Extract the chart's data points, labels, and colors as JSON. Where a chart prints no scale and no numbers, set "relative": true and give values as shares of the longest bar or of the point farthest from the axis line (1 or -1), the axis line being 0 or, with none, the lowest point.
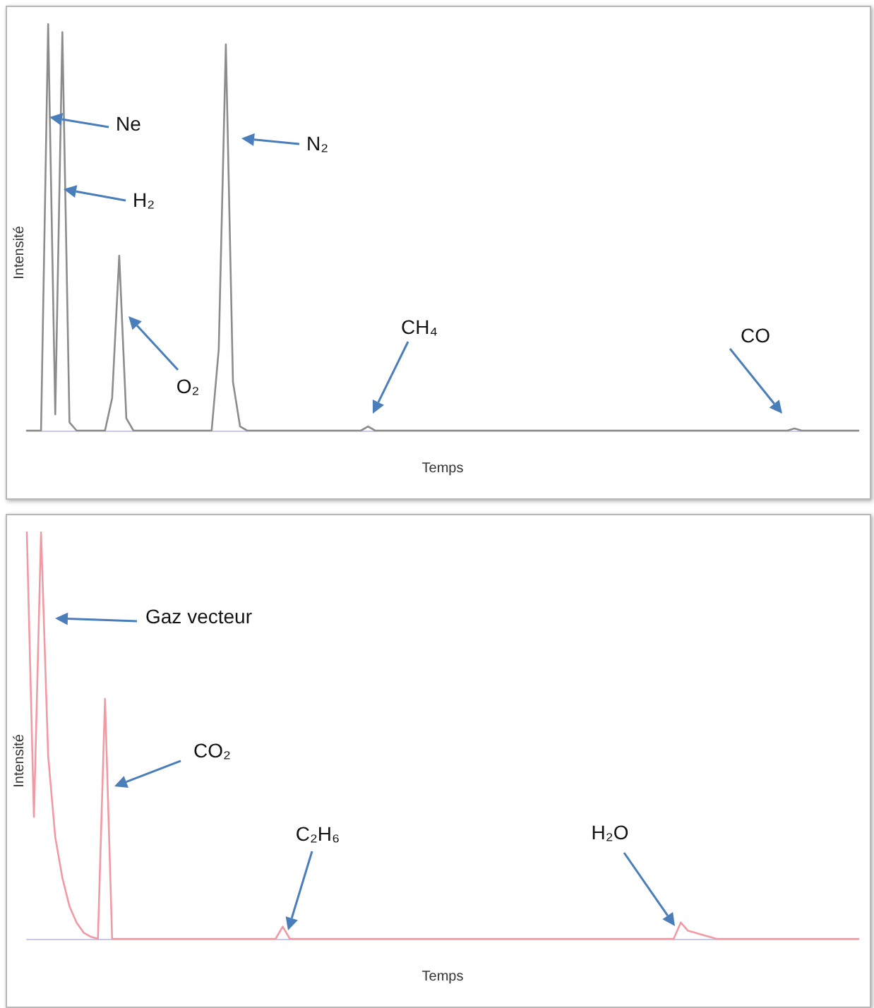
{
  "chart_data": [
    {
      "type": "line",
      "relative": true,
      "xlabel": "Temps",
      "ylabel": "Intensité",
      "line_style": "solid",
      "categories": [
        null,
        null,
        null,
        null,
        null,
        null,
        null,
        null,
        null,
        null,
        null,
        null,
        null,
        null,
        null,
        null,
        null,
        null,
        null,
        null,
        null,
        null,
        null,
        null,
        null,
        null,
        null,
        null,
        null,
        null,
        null,
        null,
        null,
        null,
        null,
        null,
        null,
        null,
        null,
        null,
        null,
        null,
        null,
        null,
        null,
        null,
        null,
        null,
        null,
        null,
        null,
        null,
        null,
        null,
        null,
        null,
        null,
        null,
        null,
        null,
        null,
        null,
        null,
        null,
        null,
        null,
        null,
        null,
        null,
        null,
        null,
        null,
        null,
        null,
        null,
        null,
        null,
        null,
        null,
        null,
        null,
        null,
        null,
        null,
        null,
        null,
        null,
        null,
        null,
        null,
        null,
        null,
        null,
        null,
        null,
        null,
        null,
        null,
        null,
        null,
        null,
        null,
        null,
        null,
        null,
        null,
        null,
        null,
        null,
        null,
        null,
        null,
        null,
        null,
        null,
        null,
        null,
        null
      ],
      "series": [
        {
          "color": "#8c8c8c",
          "values": [
            0,
            0,
            0,
            1,
            0.04,
            0.98,
            0.02,
            0,
            0,
            0,
            0,
            0,
            0.08,
            0.43,
            0.03,
            0,
            0,
            0,
            0,
            0,
            0,
            0,
            0,
            0,
            0,
            0,
            0,
            0.2,
            0.95,
            0.12,
            0.01,
            0,
            0,
            0,
            0,
            0,
            0,
            0,
            0,
            0,
            0,
            0,
            0,
            0,
            0,
            0,
            0,
            0,
            0.01,
            0,
            0,
            0,
            0,
            0,
            0,
            0,
            0,
            0,
            0,
            0,
            0,
            0,
            0,
            0,
            0,
            0,
            0,
            0,
            0,
            0,
            0,
            0,
            0,
            0,
            0,
            0,
            0,
            0,
            0,
            0,
            0,
            0,
            0,
            0,
            0,
            0,
            0,
            0,
            0,
            0,
            0,
            0,
            0,
            0,
            0,
            0,
            0,
            0,
            0,
            0,
            0,
            0,
            0,
            0,
            0,
            0,
            0,
            0,
            0.005,
            0,
            0,
            0,
            0,
            0,
            0,
            0,
            0,
            0
          ]
        }
      ],
      "annotations": [
        "Ne",
        "H₂",
        "N₂",
        "O₂",
        "CH₄",
        "CO"
      ]
    },
    {
      "type": "line",
      "relative": true,
      "xlabel": "Temps",
      "ylabel": "Intensité",
      "line_style": "solid",
      "categories": [
        null,
        null,
        null,
        null,
        null,
        null,
        null,
        null,
        null,
        null,
        null,
        null,
        null,
        null,
        null,
        null,
        null,
        null,
        null,
        null,
        null,
        null,
        null,
        null,
        null,
        null,
        null,
        null,
        null,
        null,
        null,
        null,
        null,
        null,
        null,
        null,
        null,
        null,
        null,
        null,
        null,
        null,
        null,
        null,
        null,
        null,
        null,
        null,
        null,
        null,
        null,
        null,
        null,
        null,
        null,
        null,
        null,
        null,
        null,
        null,
        null,
        null,
        null,
        null,
        null,
        null,
        null,
        null,
        null,
        null,
        null,
        null,
        null,
        null,
        null,
        null,
        null,
        null,
        null,
        null,
        null,
        null,
        null,
        null,
        null,
        null,
        null,
        null,
        null,
        null,
        null,
        null,
        null,
        null,
        null,
        null,
        null,
        null,
        null,
        null,
        null,
        null,
        null,
        null,
        null,
        null,
        null,
        null,
        null,
        null,
        null,
        null,
        null,
        null,
        null,
        null,
        null,
        null
      ],
      "series": [
        {
          "color": "#f29aa3",
          "values": [
            1,
            0.3,
            1,
            0.45,
            0.25,
            0.15,
            0.08,
            0.04,
            0.015,
            0.005,
            0,
            0.59,
            0,
            0,
            0,
            0,
            0,
            0,
            0,
            0,
            0,
            0,
            0,
            0,
            0,
            0,
            0,
            0,
            0,
            0,
            0,
            0,
            0,
            0,
            0,
            0,
            0.03,
            0,
            0,
            0,
            0,
            0,
            0,
            0,
            0,
            0,
            0,
            0,
            0,
            0,
            0,
            0,
            0,
            0,
            0,
            0,
            0,
            0,
            0,
            0,
            0,
            0,
            0,
            0,
            0,
            0,
            0,
            0,
            0,
            0,
            0,
            0,
            0,
            0,
            0,
            0,
            0,
            0,
            0,
            0,
            0,
            0,
            0,
            0,
            0,
            0,
            0,
            0,
            0,
            0,
            0,
            0,
            0.04,
            0.02,
            0.015,
            0.01,
            0.005,
            0,
            0,
            0,
            0,
            0,
            0,
            0,
            0,
            0,
            0,
            0,
            0,
            0,
            0,
            0,
            0,
            0,
            0,
            0,
            0,
            0
          ]
        }
      ],
      "annotations": [
        "Gaz vecteur",
        "CO₂",
        "C₂H₆",
        "H₂O"
      ]
    }
  ]
}
